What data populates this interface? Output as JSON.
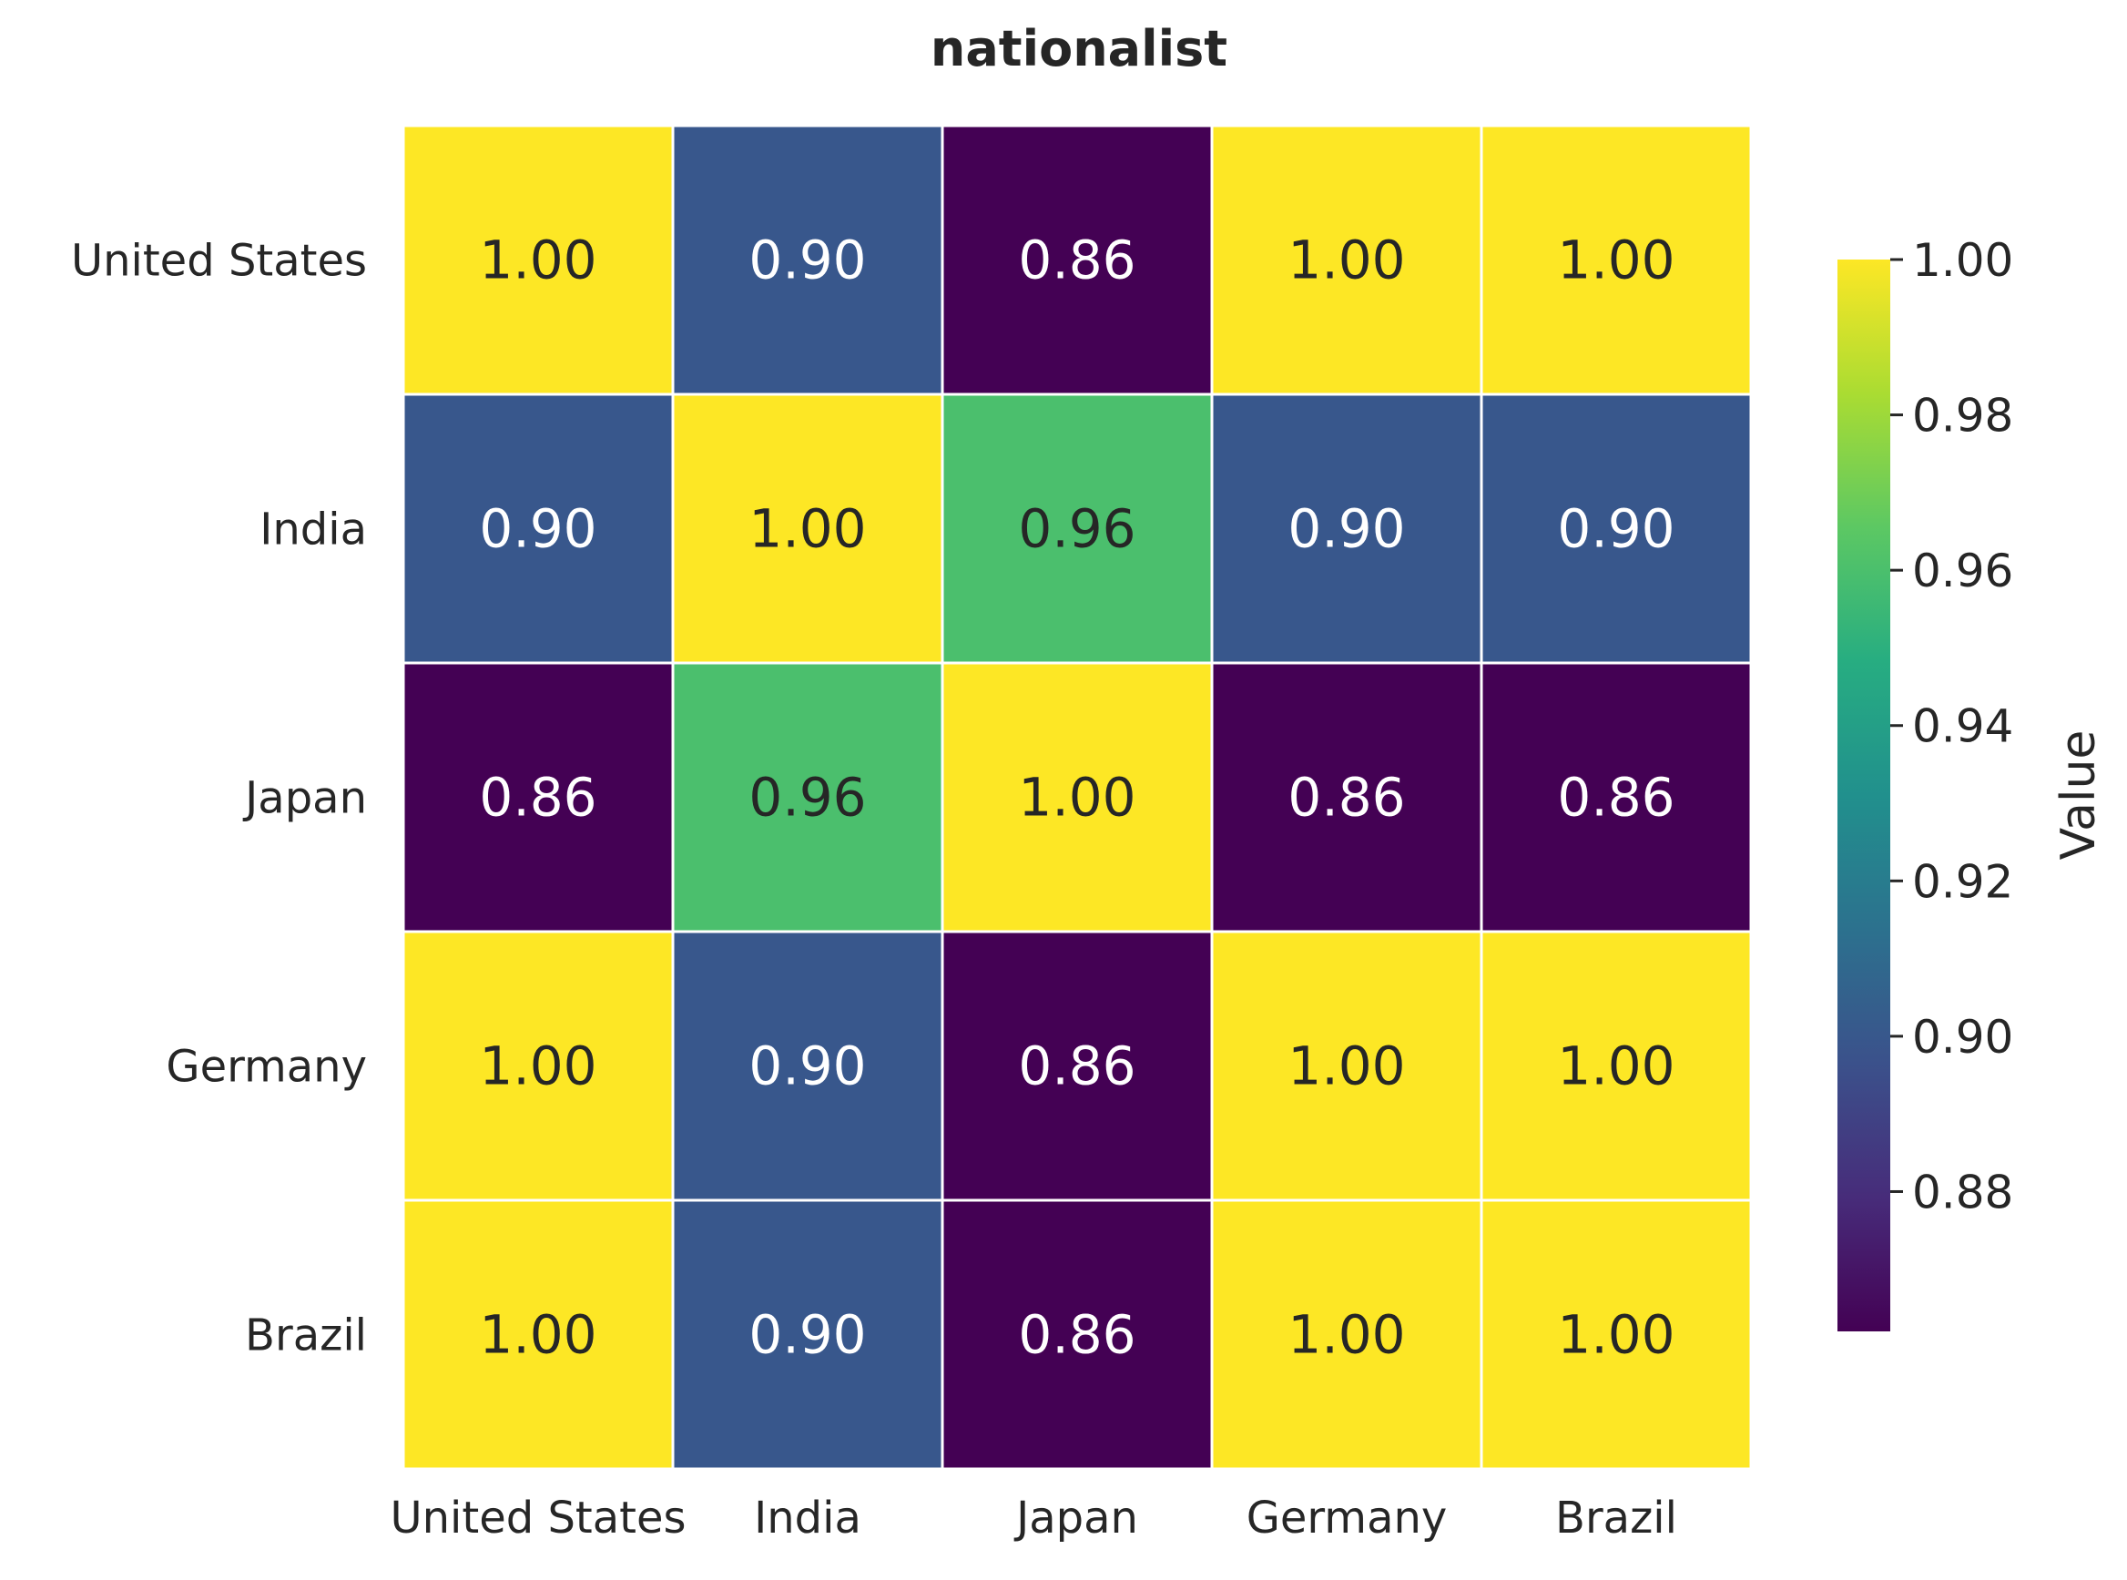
{
  "chart_data": {
    "type": "heatmap",
    "title": "nationalist",
    "rows": [
      "United States",
      "India",
      "Japan",
      "Germany",
      "Brazil"
    ],
    "columns": [
      "United States",
      "India",
      "Japan",
      "Germany",
      "Brazil"
    ],
    "values": [
      [
        1.0,
        0.9,
        0.86,
        1.0,
        1.0
      ],
      [
        0.9,
        1.0,
        0.96,
        0.9,
        0.9
      ],
      [
        0.86,
        0.96,
        1.0,
        0.86,
        0.86
      ],
      [
        1.0,
        0.9,
        0.86,
        1.0,
        1.0
      ],
      [
        1.0,
        0.9,
        0.86,
        1.0,
        1.0
      ]
    ],
    "value_format": "0.00",
    "colormap": "viridis",
    "vmin": 0.862,
    "vmax": 1.0,
    "colorbar": {
      "label": "Value",
      "ticks": [
        "0.88",
        "0.90",
        "0.92",
        "0.94",
        "0.96",
        "0.98",
        "1.00"
      ]
    },
    "grid_line_color": "#ffffff"
  }
}
